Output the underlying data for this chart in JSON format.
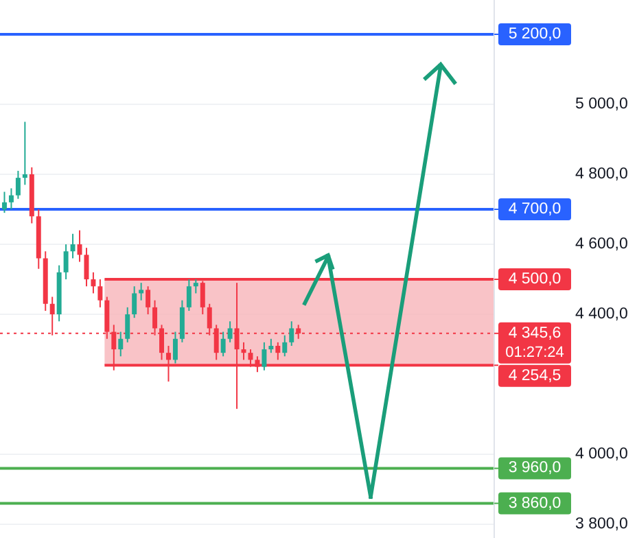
{
  "chart_data": {
    "type": "candlestick",
    "categories": [
      null,
      null,
      null,
      null,
      null,
      null,
      null,
      null,
      null,
      null,
      null,
      null,
      null,
      null,
      null,
      null,
      null,
      null,
      null,
      null,
      null,
      null,
      null,
      null,
      null,
      null,
      null,
      null,
      null,
      null,
      null,
      null,
      null,
      null,
      null,
      null,
      null,
      null,
      null,
      null,
      null,
      null,
      null,
      null,
      null,
      null,
      null,
      null,
      null,
      null,
      null,
      null,
      null,
      null,
      null,
      null,
      null,
      null,
      null,
      null,
      null,
      null,
      null,
      null,
      null,
      null,
      null,
      null,
      null,
      null,
      null,
      null
    ],
    "ohlc": [
      [
        4700,
        4750,
        4690,
        4720
      ],
      [
        4720,
        4760,
        4700,
        4740
      ],
      [
        4740,
        4810,
        4730,
        4790
      ],
      [
        4790,
        4950,
        4770,
        4800
      ],
      [
        4800,
        4820,
        4660,
        4680
      ],
      [
        4680,
        4700,
        4530,
        4560
      ],
      [
        4560,
        4580,
        4410,
        4430
      ],
      [
        4430,
        4450,
        4340,
        4400
      ],
      [
        4400,
        4540,
        4380,
        4520
      ],
      [
        4520,
        4600,
        4500,
        4580
      ],
      [
        4580,
        4630,
        4560,
        4600
      ],
      [
        4600,
        4640,
        4550,
        4570
      ],
      [
        4570,
        4590,
        4480,
        4500
      ],
      [
        4500,
        4520,
        4460,
        4480
      ],
      [
        4480,
        4500,
        4420,
        4440
      ],
      [
        4440,
        4450,
        4330,
        4350
      ],
      [
        4350,
        4370,
        4240,
        4300
      ],
      [
        4300,
        4350,
        4280,
        4330
      ],
      [
        4330,
        4420,
        4320,
        4400
      ],
      [
        4400,
        4480,
        4390,
        4460
      ],
      [
        4460,
        4490,
        4440,
        4470
      ],
      [
        4470,
        4480,
        4400,
        4420
      ],
      [
        4420,
        4440,
        4340,
        4360
      ],
      [
        4360,
        4370,
        4270,
        4290
      ],
      [
        4290,
        4310,
        4208,
        4270
      ],
      [
        4270,
        4350,
        4260,
        4330
      ],
      [
        4330,
        4440,
        4320,
        4420
      ],
      [
        4420,
        4500,
        4410,
        4480
      ],
      [
        4480,
        4500,
        4460,
        4490
      ],
      [
        4490,
        4495,
        4400,
        4420
      ],
      [
        4420,
        4430,
        4340,
        4360
      ],
      [
        4360,
        4370,
        4270,
        4290
      ],
      [
        4290,
        4350,
        4280,
        4330
      ],
      [
        4330,
        4380,
        4320,
        4360
      ],
      [
        4360,
        4490,
        4130,
        4300
      ],
      [
        4300,
        4320,
        4270,
        4290
      ],
      [
        4290,
        4300,
        4250,
        4270
      ],
      [
        4270,
        4280,
        4235,
        4250
      ],
      [
        4250,
        4320,
        4240,
        4300
      ],
      [
        4300,
        4330,
        4290,
        4310
      ],
      [
        4310,
        4320,
        4270,
        4290
      ],
      [
        4290,
        4340,
        4280,
        4320
      ],
      [
        4320,
        4380,
        4310,
        4360
      ],
      [
        4360,
        4370,
        4330,
        4345.6
      ],
      null,
      null,
      null,
      null,
      null,
      null,
      null,
      null,
      null,
      null,
      null,
      null,
      null,
      null,
      null,
      null,
      null,
      null,
      null,
      null,
      null,
      null,
      null,
      null,
      null,
      null,
      null,
      null
    ],
    "ylim": [
      3761,
      5298
    ],
    "yticks": [
      {
        "value": 3800,
        "label": "3 800,0"
      },
      {
        "value": 4000,
        "label": "4 000,0"
      },
      {
        "value": 4400,
        "label": "4 400,0"
      },
      {
        "value": 4600,
        "label": "4 600,0"
      },
      {
        "value": 4800,
        "label": "4 800,0"
      },
      {
        "value": 5000,
        "label": "5 000,0"
      }
    ],
    "grid": "y",
    "ref_lines": [
      {
        "axis": "y",
        "value": 5200,
        "label": "5 200,0",
        "color": "#2962ff"
      },
      {
        "axis": "y",
        "value": 4700,
        "label": "4 700,0",
        "color": "#2962ff"
      },
      {
        "axis": "y",
        "value": 4500,
        "label": "4 500,0",
        "color": "#f23645"
      },
      {
        "axis": "y",
        "value": 4254.5,
        "label": "4 254,5",
        "color": "#f23645"
      },
      {
        "axis": "y",
        "value": 4345.6,
        "label": "4 345,6",
        "color": "#f23645",
        "line_style": "dotted"
      },
      {
        "axis": "y",
        "value": 3960,
        "label": "3 960,0",
        "color": "#4caf50"
      },
      {
        "axis": "y",
        "value": 3860,
        "label": "3 860,0",
        "color": "#4caf50"
      }
    ],
    "bands": [
      {
        "axis": "y",
        "from": 4254.5,
        "to": 4500,
        "color": "#f7b4b9"
      }
    ],
    "annotations": [
      "01:27:24"
    ]
  }
}
